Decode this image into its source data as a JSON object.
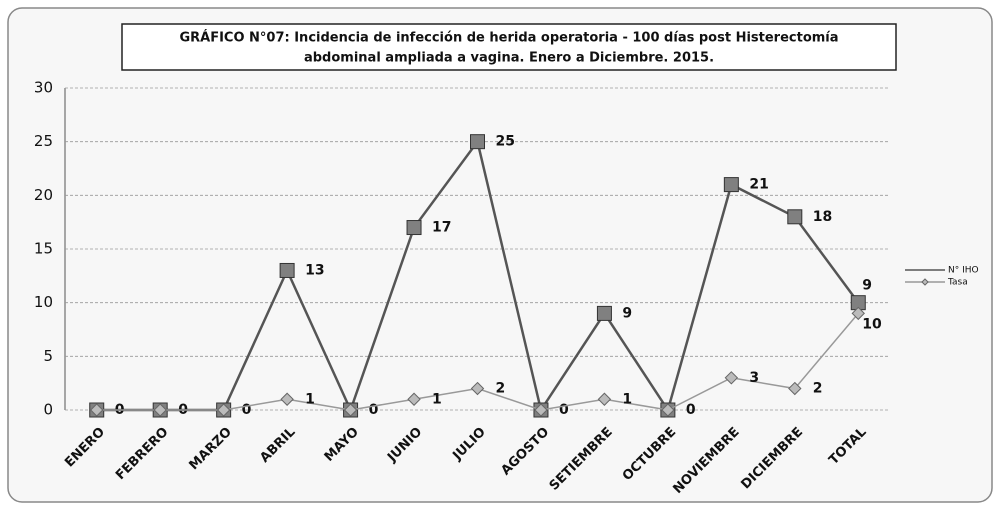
{
  "chart_data": {
    "type": "line",
    "title": [
      "GRÁFICO N°07: Incidencia de infección de herida operatoria - 100 días post Histerectomía",
      "abdominal ampliada a vagina. Enero a Diciembre. 2015."
    ],
    "categories": [
      "ENERO",
      "FEBRERO",
      "MARZO",
      "ABRIL",
      "MAYO",
      "JUNIO",
      "JULIO",
      "AGOSTO",
      "SETIEMBRE",
      "OCTUBRE",
      "NOVIEMBRE",
      "DICIEMBRE",
      "TOTAL"
    ],
    "series": [
      {
        "name": "N° IHO",
        "color": "#555555",
        "marker": "square",
        "values": [
          0,
          0,
          0,
          13,
          0,
          17,
          25,
          0,
          9,
          0,
          21,
          18,
          10
        ]
      },
      {
        "name": "Tasa",
        "color": "#999999",
        "marker": "diamond",
        "values": [
          0,
          0,
          0,
          1,
          0,
          1,
          2,
          0,
          1,
          0,
          3,
          2,
          9
        ]
      }
    ],
    "ylim": [
      0,
      30
    ],
    "yticks": [
      0,
      5,
      10,
      15,
      20,
      25,
      30
    ],
    "grid": true,
    "legend": "right"
  }
}
